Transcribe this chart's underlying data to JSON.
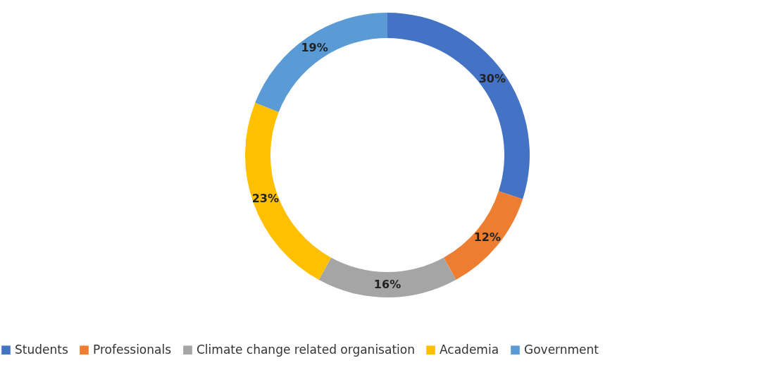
{
  "chart_data": {
    "type": "donut",
    "categories": [
      "Students",
      "Professionals",
      "Climate change related organisation",
      "Academia",
      "Government"
    ],
    "values": [
      30,
      12,
      16,
      23,
      19
    ],
    "colors": [
      "#4472c4",
      "#ed7d31",
      "#a5a5a5",
      "#ffc000",
      "#5b9bd5"
    ],
    "value_labels": [
      "30%",
      "12%",
      "16%",
      "23%",
      "19%"
    ],
    "legend": "bottom"
  }
}
